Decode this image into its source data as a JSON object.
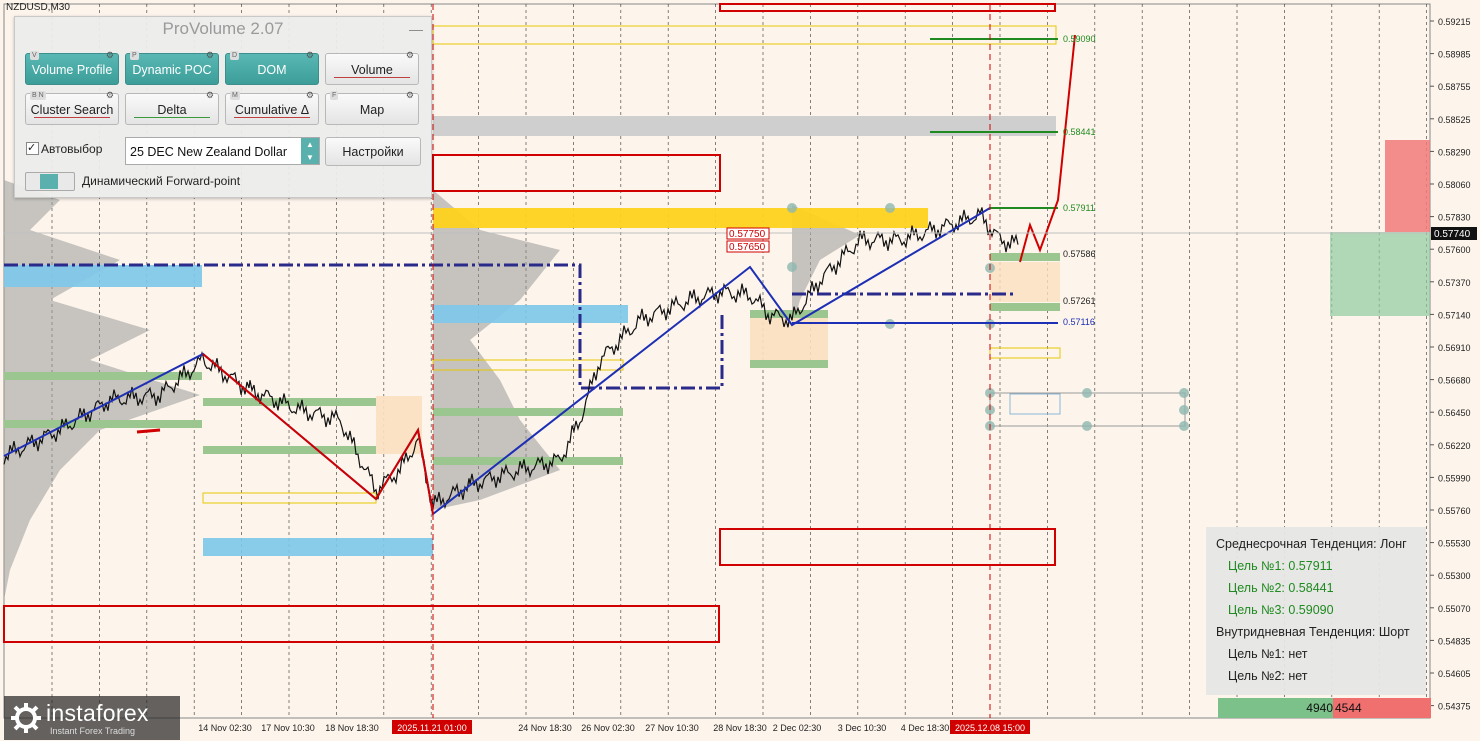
{
  "chart": {
    "symbol": "NZDUSD,M30",
    "current_price": "0.57740",
    "price_ticks": [
      "0.59215",
      "0.58985",
      "0.58755",
      "0.58525",
      "0.58290",
      "0.58060",
      "0.57830",
      "0.57600",
      "0.57370",
      "0.57140",
      "0.56910",
      "0.56680",
      "0.56450",
      "0.56220",
      "0.55990",
      "0.55760",
      "0.55530",
      "0.55300",
      "0.55070",
      "0.54835",
      "0.54605",
      "0.54375"
    ],
    "time_ticks": [
      "14 Nov 02:30",
      "17 Nov 10:30",
      "18 Nov 18:30",
      "2025.11.21 01:00",
      "24 Nov 18:30",
      "26 Nov 02:30",
      "27 Nov 10:30",
      "28 Nov 18:30",
      "2 Dec 02:30",
      "3 Dec 10:30",
      "4 Dec 18:30",
      "2025.12.08 15:00"
    ],
    "level_labels": [
      "0.59090",
      "0.58441",
      "0.57911",
      "0.57586",
      "0.57261",
      "0.57116"
    ],
    "box_labels": [
      "0.57750",
      "0.57650"
    ]
  },
  "provolume": {
    "title": "ProVolume 2.07",
    "minimize": "—",
    "buttons": [
      {
        "key": "V",
        "label": "Volume Profile",
        "active": true
      },
      {
        "key": "P",
        "label": "Dynamic POC",
        "active": true
      },
      {
        "key": "D",
        "label": "DOM",
        "active": true
      },
      {
        "key": "",
        "label": "Volume",
        "active": false
      },
      {
        "key": "B N",
        "label": "Cluster Search",
        "active": false
      },
      {
        "key": "",
        "label": "Delta",
        "active": false
      },
      {
        "key": "M",
        "label": "Cumulative Δ",
        "active": false
      },
      {
        "key": "F",
        "label": "Map",
        "active": false
      }
    ],
    "autoselect_label": "Автовыбор",
    "autoselect_checked": "✓",
    "instrument": "25 DEC New Zealand Dollar",
    "settings_label": "Настройки",
    "forward_point_label": "Динамический Forward-point"
  },
  "trend_panel": {
    "medium_title": "Среднесрочная Тенденция: Лонг",
    "targets_long": [
      "Цель №1: 0.57911",
      "Цель №2: 0.58441",
      "Цель №3: 0.59090"
    ],
    "intraday_title": "Внутридневная Тенденция: Шорт",
    "targets_short": [
      "Цель №1: нет",
      "Цель №2: нет"
    ]
  },
  "volume_bar": {
    "buy": "4940",
    "sell": "4544"
  },
  "logo": {
    "name": "instaforex",
    "tagline": "Instant Forex Trading"
  },
  "colors": {
    "bg": "#fdf5ec",
    "accent": "#3c9d99",
    "long": "#1f8a1f",
    "red": "#d00000",
    "blue": "#1d2fb4"
  }
}
